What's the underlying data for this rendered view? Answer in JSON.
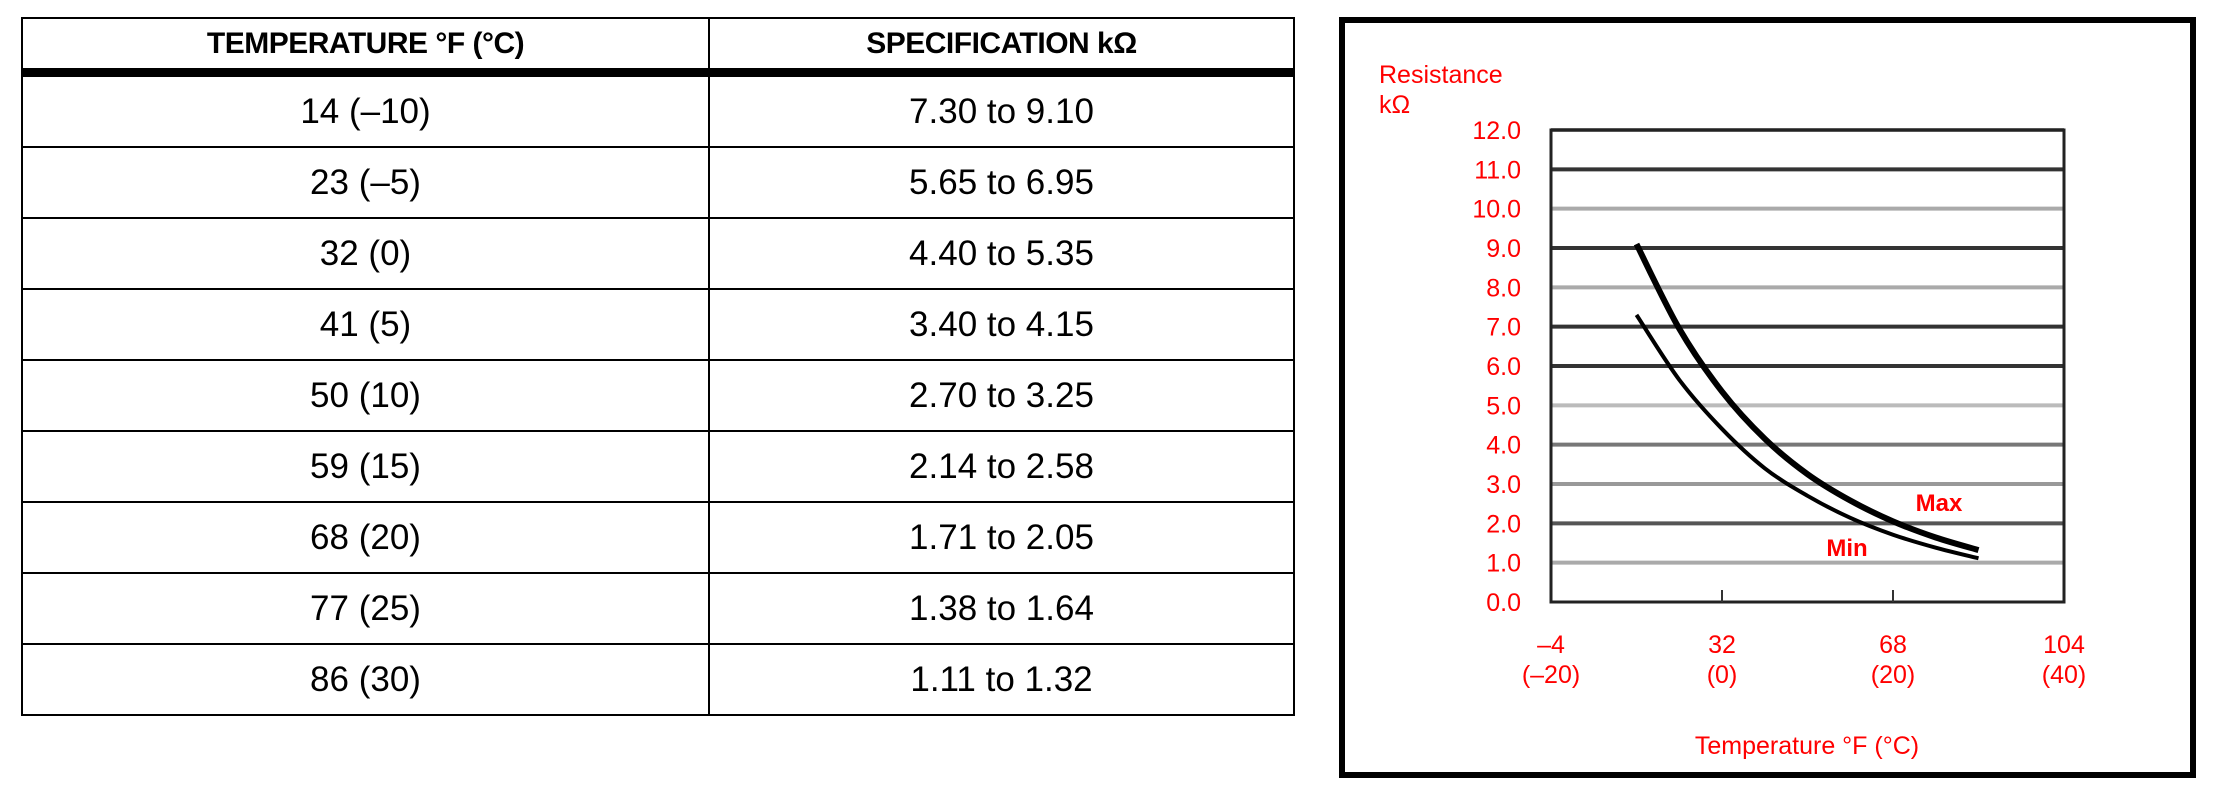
{
  "table": {
    "headers": [
      "TEMPERATURE °F (°C)",
      "SPECIFICATION kΩ"
    ],
    "rows": [
      [
        "14 (–10)",
        "7.30 to 9.10"
      ],
      [
        "23 (–5)",
        "5.65 to 6.95"
      ],
      [
        "32 (0)",
        "4.40 to 5.35"
      ],
      [
        "41 (5)",
        "3.40 to 4.15"
      ],
      [
        "50 (10)",
        "2.70 to 3.25"
      ],
      [
        "59 (15)",
        "2.14 to 2.58"
      ],
      [
        "68 (20)",
        "1.71 to 2.05"
      ],
      [
        "77 (25)",
        "1.38 to 1.64"
      ],
      [
        "86 (30)",
        "1.11 to 1.32"
      ]
    ]
  },
  "chart_data": {
    "type": "line",
    "ylabel_line1": "Resistance",
    "ylabel_line2": "kΩ",
    "xlabel": "Temperature °F (°C)",
    "xlim": [
      -4,
      104
    ],
    "ylim": [
      0,
      12
    ],
    "yticks": [
      "0.0",
      "1.0",
      "2.0",
      "3.0",
      "4.0",
      "5.0",
      "6.0",
      "7.0",
      "8.0",
      "9.0",
      "10.0",
      "11.0",
      "12.0"
    ],
    "xticks": [
      {
        "value": -4,
        "f": "–4",
        "c": "(–20)"
      },
      {
        "value": 32,
        "f": "32",
        "c": "(0)"
      },
      {
        "value": 68,
        "f": "68",
        "c": "(20)"
      },
      {
        "value": 104,
        "f": "104",
        "c": "(40)"
      }
    ],
    "grid": true,
    "text_color": "#ff0000",
    "x": [
      14,
      23,
      32,
      41,
      50,
      59,
      68,
      77,
      86
    ],
    "series": [
      {
        "name": "Max",
        "values": [
          9.1,
          6.95,
          5.35,
          4.15,
          3.25,
          2.58,
          2.05,
          1.64,
          1.32
        ]
      },
      {
        "name": "Min",
        "values": [
          7.3,
          5.65,
          4.4,
          3.4,
          2.7,
          2.14,
          1.71,
          1.38,
          1.11
        ]
      }
    ]
  }
}
